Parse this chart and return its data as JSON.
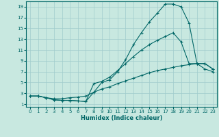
{
  "xlabel": "Humidex (Indice chaleur)",
  "ylabel": "",
  "bg_color": "#c8e8e0",
  "grid_color": "#a0cccc",
  "line_color": "#006666",
  "marker": "+",
  "xlim": [
    -0.5,
    23.5
  ],
  "ylim": [
    0.5,
    20
  ],
  "xticks": [
    0,
    1,
    2,
    3,
    4,
    5,
    6,
    7,
    8,
    9,
    10,
    11,
    12,
    13,
    14,
    15,
    16,
    17,
    18,
    19,
    20,
    21,
    22,
    23
  ],
  "yticks": [
    1,
    3,
    5,
    7,
    9,
    11,
    13,
    15,
    17,
    19
  ],
  "line1_x": [
    0,
    1,
    2,
    3,
    4,
    5,
    6,
    7,
    8,
    9,
    10,
    11,
    12,
    13,
    14,
    15,
    16,
    17,
    18,
    19,
    20,
    21,
    22,
    23
  ],
  "line1_y": [
    2.5,
    2.5,
    2.2,
    1.8,
    1.7,
    1.7,
    1.6,
    1.5,
    3.2,
    5.0,
    5.5,
    7.0,
    9.2,
    12.0,
    14.2,
    16.2,
    17.8,
    19.5,
    19.5,
    19.0,
    16.0,
    8.5,
    8.5,
    7.5
  ],
  "line2_x": [
    0,
    1,
    2,
    3,
    4,
    5,
    6,
    7,
    8,
    9,
    10,
    11,
    12,
    13,
    14,
    15,
    16,
    17,
    18,
    19,
    20,
    21,
    22,
    23
  ],
  "line2_y": [
    2.5,
    2.5,
    2.2,
    1.8,
    1.7,
    1.7,
    1.6,
    1.5,
    4.8,
    5.2,
    6.0,
    7.2,
    8.5,
    9.8,
    11.0,
    12.0,
    12.8,
    13.5,
    14.2,
    12.5,
    8.5,
    8.5,
    8.5,
    7.5
  ],
  "line3_x": [
    0,
    1,
    2,
    3,
    4,
    5,
    6,
    7,
    8,
    9,
    10,
    11,
    12,
    13,
    14,
    15,
    16,
    17,
    18,
    19,
    20,
    21,
    22,
    23
  ],
  "line3_y": [
    2.5,
    2.5,
    2.2,
    2.0,
    2.0,
    2.2,
    2.3,
    2.5,
    3.2,
    3.8,
    4.2,
    4.8,
    5.3,
    5.8,
    6.3,
    6.8,
    7.2,
    7.5,
    7.8,
    8.1,
    8.3,
    8.5,
    7.5,
    7.0
  ]
}
